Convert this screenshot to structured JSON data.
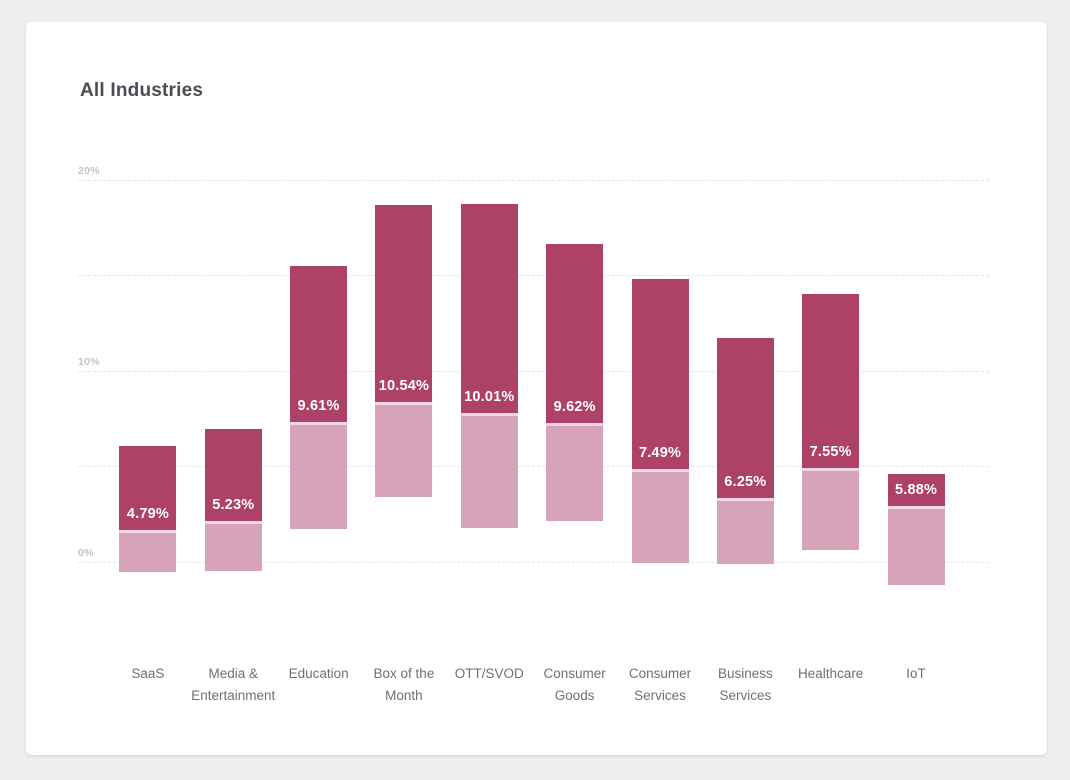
{
  "chart": {
    "title": "All Industries"
  },
  "colors": {
    "page_background": "#edeef0",
    "card_background": "#ffffff",
    "bar_upper": "#ae4168",
    "bar_lower": "#d7a3ba",
    "bar_separator": "#eed7e2",
    "gridline": "#e5e6e8",
    "tick_label": "#c2c5c9",
    "x_label": "#6d7175",
    "title": "#4a4e54",
    "value_label": "#ffffff"
  },
  "chart_data": {
    "type": "bar",
    "subtype": "stacked-range-columns",
    "title": "All Industries",
    "xlabel": "",
    "ylabel": "",
    "ylim": [
      -1.5,
      21
    ],
    "grid": "dashed-horizontal",
    "legend": "none",
    "y_ticks": [
      {
        "value": 20,
        "label": "20%"
      },
      {
        "value": 15,
        "label": ""
      },
      {
        "value": 10,
        "label": "10%"
      },
      {
        "value": 5,
        "label": ""
      },
      {
        "value": 0,
        "label": "0%"
      }
    ],
    "categories": [
      {
        "label": "SaaS",
        "label_lines": [
          "SaaS"
        ],
        "value_label": "4.79%",
        "upper_top": 6.06,
        "boundary": 1.66,
        "lower_bottom": -0.55
      },
      {
        "label": "Media & Entertainment",
        "label_lines": [
          "Media &",
          "Entertainment"
        ],
        "value_label": "5.23%",
        "upper_top": 6.95,
        "boundary": 2.13,
        "lower_bottom": -0.47
      },
      {
        "label": "Education",
        "label_lines": [
          "Education"
        ],
        "value_label": "9.61%",
        "upper_top": 15.49,
        "boundary": 7.32,
        "lower_bottom": 1.71
      },
      {
        "label": "Box of the Month",
        "label_lines": [
          "Box of the",
          "Month"
        ],
        "value_label": "10.54%",
        "upper_top": 18.69,
        "boundary": 8.37,
        "lower_bottom": 3.39
      },
      {
        "label": "OTT/SVOD",
        "label_lines": [
          "OTT/SVOD"
        ],
        "value_label": "10.01%",
        "upper_top": 18.74,
        "boundary": 7.79,
        "lower_bottom": 1.76
      },
      {
        "label": "Consumer Goods",
        "label_lines": [
          "Consumer",
          "Goods"
        ],
        "value_label": "9.62%",
        "upper_top": 16.65,
        "boundary": 7.28,
        "lower_bottom": 2.14
      },
      {
        "label": "Consumer Services",
        "label_lines": [
          "Consumer",
          "Services"
        ],
        "value_label": "7.49%",
        "upper_top": 14.81,
        "boundary": 4.84,
        "lower_bottom": -0.06
      },
      {
        "label": "Business Services",
        "label_lines": [
          "Business",
          "Services"
        ],
        "value_label": "6.25%",
        "upper_top": 11.72,
        "boundary": 3.32,
        "lower_bottom": -0.13
      },
      {
        "label": "Healthcare",
        "label_lines": [
          "Healthcare"
        ],
        "value_label": "7.55%",
        "upper_top": 14.03,
        "boundary": 4.92,
        "lower_bottom": 0.61
      },
      {
        "label": "IoT",
        "label_lines": [
          "IoT"
        ],
        "value_label": "5.88%",
        "upper_top": 4.58,
        "boundary": 2.91,
        "lower_bottom": -1.23
      }
    ],
    "series_legend": [
      {
        "name": "upper-segment",
        "color": "#ae4168"
      },
      {
        "name": "lower-segment",
        "color": "#d7a3ba"
      }
    ]
  }
}
